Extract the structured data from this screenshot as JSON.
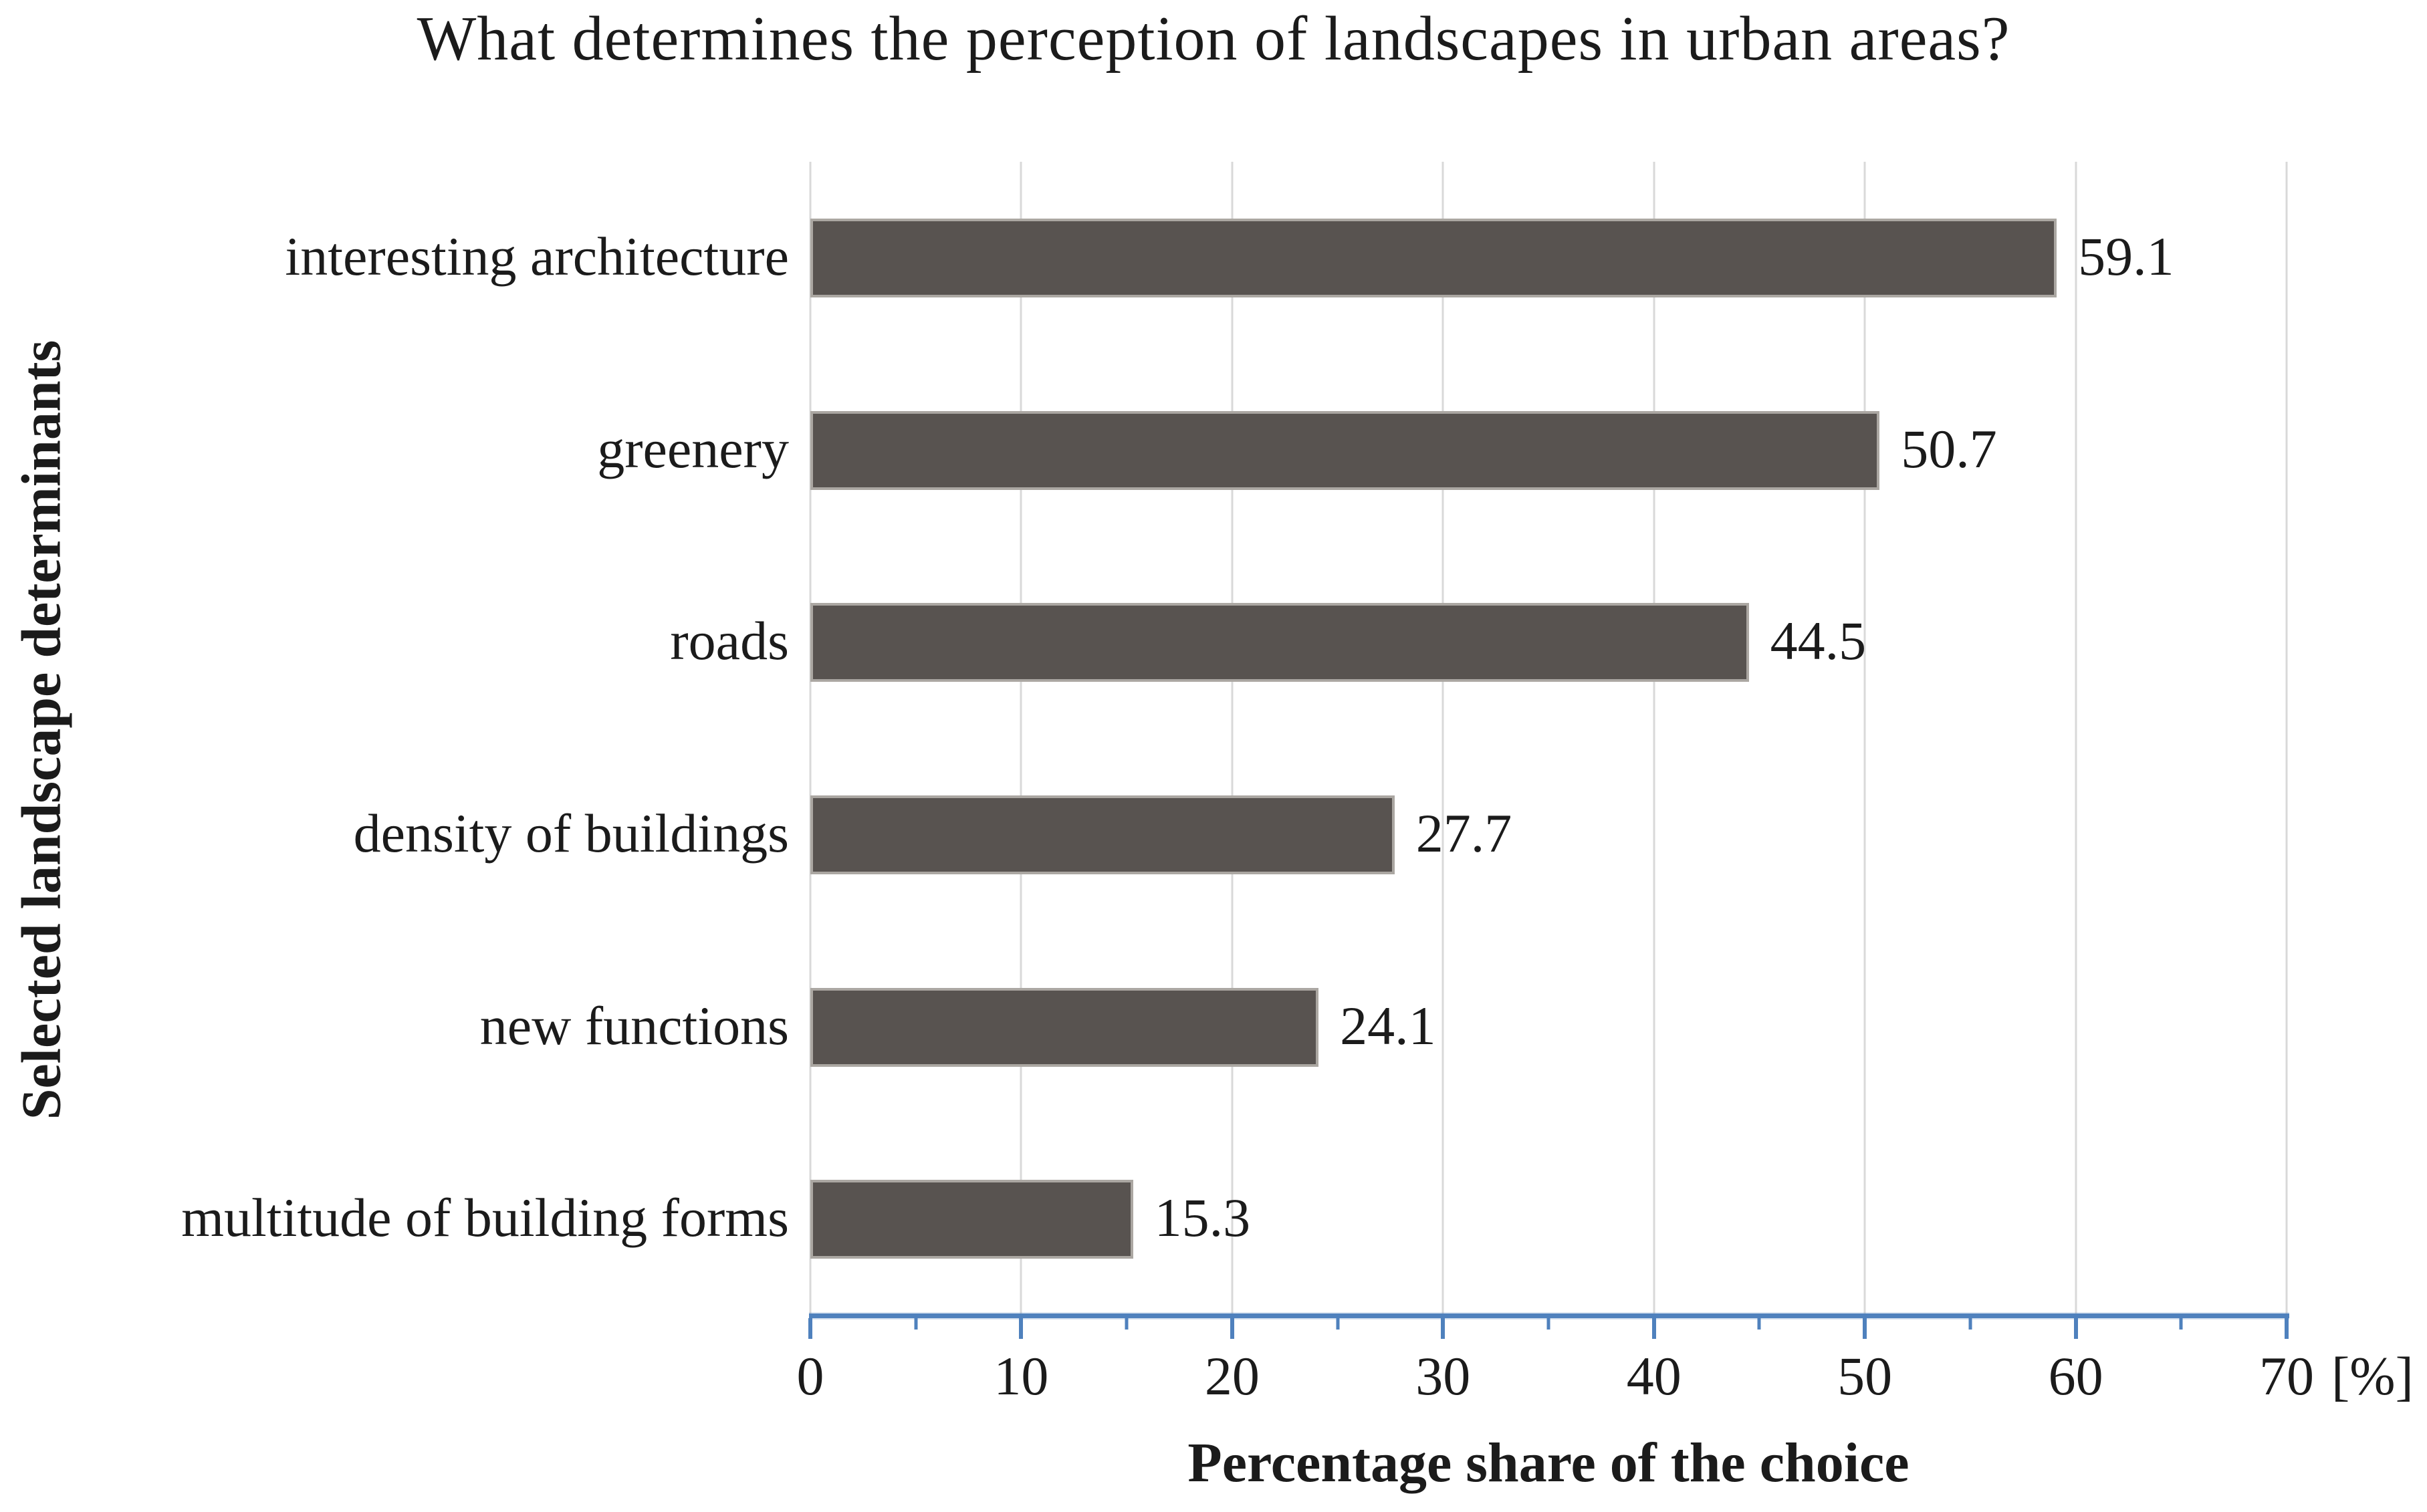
{
  "title": "What determines the perception of landscapes in urban areas?",
  "chart_data": {
    "type": "bar",
    "orientation": "horizontal",
    "title": "What determines the perception of landscapes in urban areas?",
    "categories": [
      "interesting architecture",
      "greenery",
      "roads",
      "density of buildings",
      "new functions",
      "multitude of building forms"
    ],
    "values": [
      59.1,
      50.7,
      44.5,
      27.7,
      24.1,
      15.3
    ],
    "data_labels": [
      "59.1",
      "50.7",
      "44.5",
      "27.7",
      "24.1",
      "15.3"
    ],
    "xlabel": "Percentage share of the choice",
    "ylabel": "Selected landscape determinants",
    "unit_label": "[%]",
    "xlim": [
      0,
      70
    ],
    "x_tick_labels": [
      "0",
      "10",
      "20",
      "30",
      "40",
      "50",
      "60",
      "70"
    ],
    "x_major_tick_step": 10,
    "x_minor_tick_step": 5,
    "grid": "vertical gridlines at every 10 units",
    "legend": "none",
    "colors": {
      "bar_fill": "#585350",
      "bar_border": "#aba7a2",
      "axis_line": "#4f81bd",
      "gridline": "#d9d9d9",
      "text": "#1b1b1b",
      "background": "#ffffff"
    }
  }
}
